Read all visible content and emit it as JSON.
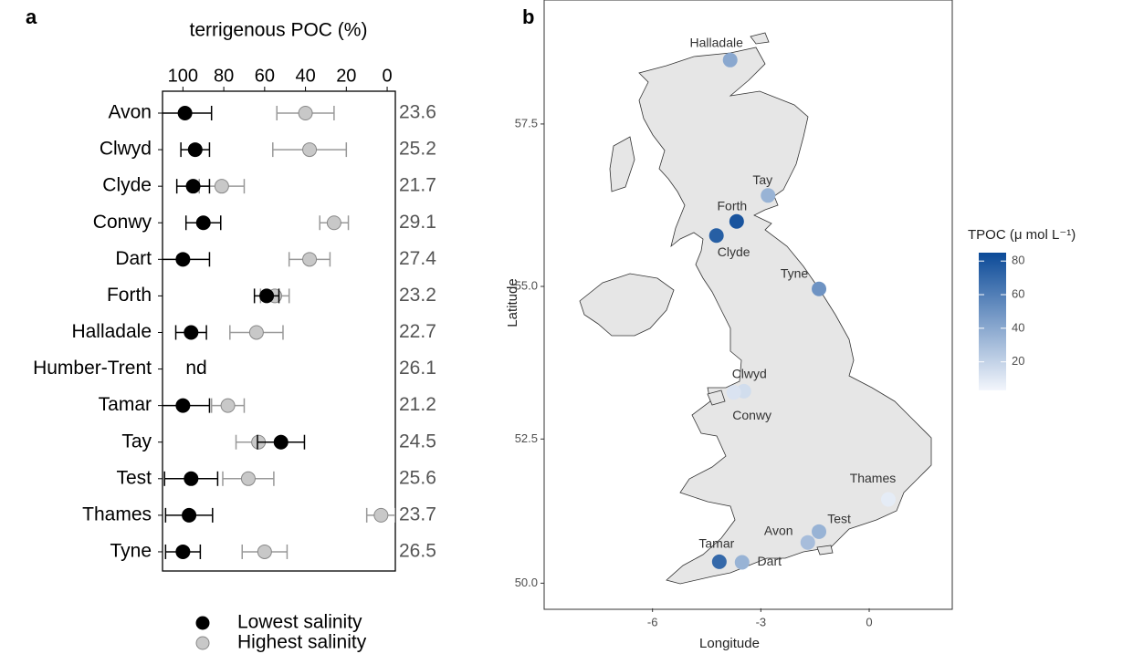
{
  "chart_data": [
    {
      "type": "errorbar",
      "panel_label": "a",
      "title": "terrigenous POC (%)",
      "categories": [
        "Avon",
        "Clwyd",
        "Clyde",
        "Conwy",
        "Dart",
        "Forth",
        "Halladale",
        "Humber-Trent",
        "Tamar",
        "Tay",
        "Test",
        "Thames",
        "Tyne"
      ],
      "xlim": [
        110,
        -4
      ],
      "xticks": [
        100,
        80,
        60,
        40,
        20,
        0
      ],
      "series": [
        {
          "name": "Lowest salinity",
          "color": "#000000",
          "values": [
            99,
            94,
            95,
            90,
            100,
            59,
            96,
            null,
            100,
            52,
            96,
            97,
            100
          ],
          "errors": [
            13,
            7,
            8,
            8.5,
            13,
            6,
            7.5,
            null,
            13,
            11.5,
            13,
            11.5,
            8.5
          ]
        },
        {
          "name": "Highest salinity",
          "color": "#c8c8c8",
          "values": [
            40,
            38,
            81,
            26,
            38,
            55,
            64,
            null,
            78,
            63,
            68,
            3,
            60
          ],
          "errors": [
            14,
            18,
            11,
            7,
            10,
            7,
            13,
            null,
            8,
            11,
            12.5,
            7,
            11
          ]
        }
      ],
      "missing_label": "nd",
      "side_values": [
        23.6,
        25.2,
        21.7,
        29.1,
        27.4,
        23.2,
        22.7,
        26.1,
        21.2,
        24.5,
        25.6,
        23.7,
        26.5
      ]
    },
    {
      "type": "map",
      "panel_label": "b",
      "x_label": "Longitude",
      "y_label": "Latitude",
      "projection": "mercator",
      "xlim": [
        -9.0,
        2.3
      ],
      "ylim": [
        49.55,
        59.3
      ],
      "xticks": [
        -6,
        -3,
        0
      ],
      "yticks": [
        {
          "value": 50,
          "label": "50.0"
        },
        52.5,
        {
          "value": 55,
          "label": "55.0"
        },
        57.5
      ],
      "points": {
        "names": [
          "Halladale",
          "Tay",
          "Forth",
          "Clyde",
          "Tyne",
          "Clwyd",
          "Conwy",
          "Thames",
          "Test",
          "Avon",
          "Tamar",
          "Dart"
        ],
        "x": [
          -3.85,
          -2.8,
          -3.67,
          -4.23,
          -1.39,
          -3.47,
          -3.75,
          0.53,
          -1.39,
          -1.7,
          -4.15,
          -3.52
        ],
        "y": [
          58.44,
          56.42,
          56.02,
          55.8,
          54.96,
          53.3,
          53.28,
          51.47,
          50.91,
          50.72,
          50.38,
          50.37
        ],
        "values": [
          40,
          35,
          80,
          75,
          50,
          15,
          12,
          8,
          35,
          30,
          70,
          35
        ]
      },
      "colorbar": {
        "title": "TPOC (μ mol L⁻¹)",
        "range": [
          3,
          85
        ],
        "colors": [
          "#f3f6fc",
          "#0b4a98"
        ],
        "ticks": [
          20,
          40,
          60,
          80
        ]
      }
    }
  ]
}
